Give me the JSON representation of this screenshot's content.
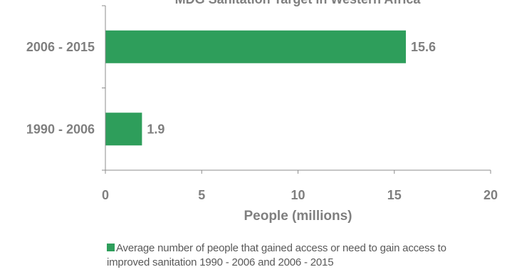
{
  "chart_data": {
    "type": "bar",
    "orientation": "horizontal",
    "title": "MDG Sanitation Target in Western Africa",
    "categories": [
      "2006 - 2015",
      "1990 - 2006"
    ],
    "series": [
      {
        "name": "Average number of people that gained access or need to gain access to improved sanitation 1990 - 2006 and 2006 - 2015",
        "values": [
          15.6,
          1.9
        ],
        "color": "#2e9e5b"
      }
    ],
    "data_labels": [
      "15.6",
      "1.9"
    ],
    "xlabel": "People (millions)",
    "ylabel": "",
    "xlim": [
      0,
      20
    ],
    "x_ticks": [
      0,
      5,
      10,
      15,
      20
    ],
    "grid": false,
    "legend_position": "bottom"
  }
}
